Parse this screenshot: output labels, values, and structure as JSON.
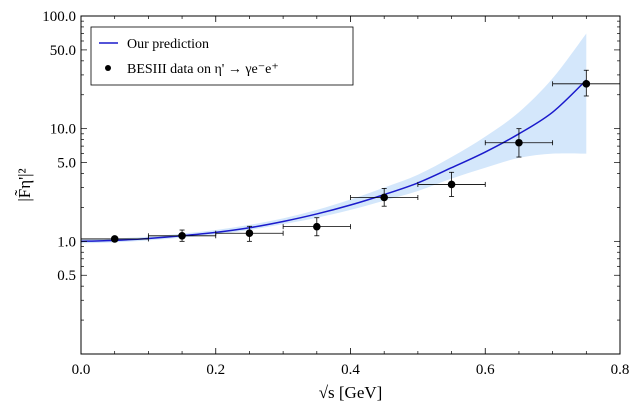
{
  "chart_data": {
    "type": "line",
    "yscale": "log",
    "xlim": [
      0.0,
      0.8
    ],
    "ylim": [
      0.1,
      100.0
    ],
    "xticks": [
      0.0,
      0.2,
      0.4,
      0.6,
      0.8
    ],
    "xtick_labels": [
      "0.0",
      "0.2",
      "0.4",
      "0.6",
      "0.8"
    ],
    "yticks": [
      0.5,
      1.0,
      5.0,
      10.0,
      50.0,
      100.0
    ],
    "ytick_labels": [
      "0.5",
      "1.0",
      "5.0",
      "10.0",
      "50.0",
      "100.0"
    ],
    "xlabel": "√s  [GeV]",
    "ylabel": "|F̃η'|²",
    "legend_position": "top-left",
    "series": [
      {
        "name": "Our prediction",
        "kind": "line",
        "color": "#1a1acc",
        "x": [
          0.0,
          0.05,
          0.1,
          0.15,
          0.2,
          0.25,
          0.3,
          0.35,
          0.4,
          0.45,
          0.5,
          0.55,
          0.6,
          0.65,
          0.7,
          0.75
        ],
        "y": [
          1.0,
          1.02,
          1.06,
          1.12,
          1.2,
          1.32,
          1.5,
          1.75,
          2.1,
          2.6,
          3.3,
          4.5,
          6.2,
          9.0,
          14.0,
          27.0
        ],
        "band_lower": [
          0.96,
          0.98,
          1.02,
          1.08,
          1.15,
          1.26,
          1.42,
          1.62,
          1.9,
          2.3,
          2.8,
          3.6,
          4.5,
          5.5,
          6.0,
          6.0
        ],
        "band_upper": [
          1.04,
          1.06,
          1.1,
          1.17,
          1.26,
          1.4,
          1.6,
          1.9,
          2.35,
          3.0,
          3.9,
          5.6,
          8.5,
          14.0,
          28.0,
          70.0
        ],
        "band_color": "#d4e7fb"
      },
      {
        "name": "BESIII data on η' → γe⁻e⁺",
        "kind": "scatter",
        "color": "#000000",
        "points": [
          {
            "x": 0.05,
            "y": 1.05,
            "xerr": 0.05,
            "ylo": 1.02,
            "yhi": 1.08
          },
          {
            "x": 0.15,
            "y": 1.12,
            "xerr": 0.05,
            "ylo": 1.0,
            "yhi": 1.26
          },
          {
            "x": 0.25,
            "y": 1.18,
            "xerr": 0.05,
            "ylo": 1.0,
            "yhi": 1.36
          },
          {
            "x": 0.35,
            "y": 1.35,
            "xerr": 0.05,
            "ylo": 1.12,
            "yhi": 1.62
          },
          {
            "x": 0.45,
            "y": 2.45,
            "xerr": 0.05,
            "ylo": 2.05,
            "yhi": 2.95
          },
          {
            "x": 0.55,
            "y": 3.2,
            "xerr": 0.05,
            "ylo": 2.5,
            "yhi": 4.1
          },
          {
            "x": 0.65,
            "y": 7.5,
            "xerr": 0.05,
            "ylo": 5.6,
            "yhi": 10.0
          },
          {
            "x": 0.75,
            "y": 25.0,
            "xerr": 0.05,
            "ylo": 19.5,
            "yhi": 33.0
          }
        ]
      }
    ]
  }
}
